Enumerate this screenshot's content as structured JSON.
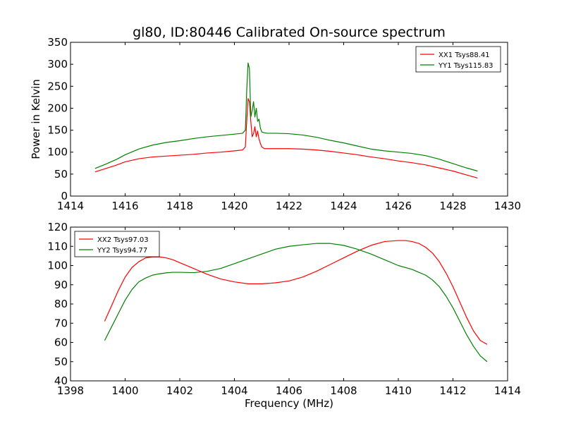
{
  "figure": {
    "title": "gl80, ID:80446 Calibrated On-source spectrum"
  },
  "chart_data": [
    {
      "type": "line",
      "title": "gl80, ID:80446 Calibrated On-source spectrum",
      "xlabel": "",
      "ylabel": "Power in Kelvin",
      "xlim": [
        1414,
        1430
      ],
      "ylim": [
        0,
        350
      ],
      "xticks": [
        1414,
        1416,
        1418,
        1420,
        1422,
        1424,
        1426,
        1428,
        1430
      ],
      "yticks": [
        0,
        50,
        100,
        150,
        200,
        250,
        300,
        350
      ],
      "grid": false,
      "legend": "top-right",
      "series": [
        {
          "name": "XX1 Tsys88.41",
          "color": "#ff0000",
          "x": [
            1414.9,
            1415.3,
            1415.7,
            1416.0,
            1416.5,
            1417.0,
            1417.5,
            1418.0,
            1418.5,
            1419.0,
            1419.5,
            1420.0,
            1420.3,
            1420.4,
            1420.45,
            1420.5,
            1420.55,
            1420.6,
            1420.65,
            1420.7,
            1420.75,
            1420.8,
            1420.85,
            1420.9,
            1420.95,
            1421.0,
            1421.1,
            1421.2,
            1421.5,
            1422.0,
            1422.5,
            1423.0,
            1423.5,
            1424.0,
            1424.5,
            1425.0,
            1425.5,
            1426.0,
            1426.5,
            1427.0,
            1427.5,
            1428.0,
            1428.5,
            1428.9
          ],
          "y": [
            55,
            63,
            71,
            78,
            85,
            89,
            91,
            93,
            95,
            98,
            100,
            103,
            105,
            112,
            170,
            222,
            215,
            170,
            135,
            142,
            158,
            135,
            148,
            130,
            120,
            112,
            108,
            108,
            108,
            108,
            107,
            105,
            102,
            98,
            94,
            89,
            85,
            80,
            76,
            71,
            64,
            57,
            48,
            41
          ]
        },
        {
          "name": "YY1 Tsys115.83",
          "color": "#008000",
          "x": [
            1414.9,
            1415.3,
            1415.7,
            1416.0,
            1416.5,
            1417.0,
            1417.5,
            1418.0,
            1418.5,
            1419.0,
            1419.5,
            1420.0,
            1420.3,
            1420.4,
            1420.45,
            1420.5,
            1420.55,
            1420.6,
            1420.65,
            1420.7,
            1420.75,
            1420.8,
            1420.85,
            1420.9,
            1420.95,
            1421.0,
            1421.1,
            1421.2,
            1421.5,
            1422.0,
            1422.5,
            1423.0,
            1423.5,
            1424.0,
            1424.5,
            1425.0,
            1425.5,
            1426.0,
            1426.5,
            1427.0,
            1427.5,
            1428.0,
            1428.5,
            1428.9
          ],
          "y": [
            63,
            73,
            84,
            94,
            107,
            116,
            122,
            126,
            131,
            135,
            138,
            141,
            143,
            150,
            240,
            303,
            290,
            180,
            195,
            215,
            180,
            200,
            170,
            175,
            155,
            146,
            144,
            143,
            143,
            142,
            139,
            134,
            127,
            121,
            114,
            107,
            103,
            100,
            97,
            92,
            84,
            74,
            64,
            57
          ]
        }
      ]
    },
    {
      "type": "line",
      "title": "",
      "xlabel": "Frequency (MHz)",
      "ylabel": "",
      "xlim": [
        1398,
        1414
      ],
      "ylim": [
        40,
        120
      ],
      "xticks": [
        1398,
        1400,
        1402,
        1404,
        1406,
        1408,
        1410,
        1412,
        1414
      ],
      "yticks": [
        40,
        50,
        60,
        70,
        80,
        90,
        100,
        110,
        120
      ],
      "grid": false,
      "legend": "top-left",
      "series": [
        {
          "name": "XX2 Tsys97.03",
          "color": "#ff0000",
          "x": [
            1399.25,
            1399.5,
            1399.75,
            1400.0,
            1400.25,
            1400.5,
            1400.75,
            1401.0,
            1401.25,
            1401.5,
            1401.75,
            1402.0,
            1402.5,
            1403.0,
            1403.5,
            1404.0,
            1404.5,
            1405.0,
            1405.5,
            1406.0,
            1406.5,
            1407.0,
            1407.5,
            1408.0,
            1408.5,
            1409.0,
            1409.5,
            1410.0,
            1410.25,
            1410.5,
            1410.75,
            1411.0,
            1411.25,
            1411.5,
            1411.75,
            1412.0,
            1412.25,
            1412.5,
            1412.75,
            1413.0,
            1413.25
          ],
          "y": [
            71,
            79,
            87,
            94,
            99,
            102,
            104,
            104.5,
            104.5,
            104,
            103,
            101.5,
            98.5,
            95.5,
            93,
            91.5,
            90.5,
            90.5,
            91,
            92,
            94,
            97,
            100.5,
            104,
            107.5,
            110.5,
            112.5,
            113,
            113,
            112.5,
            111.5,
            109.5,
            106.5,
            102,
            96,
            89,
            81,
            73,
            66,
            61,
            59
          ]
        },
        {
          "name": "YY2 Tsys94.77",
          "color": "#008000",
          "x": [
            1399.25,
            1399.5,
            1399.75,
            1400.0,
            1400.25,
            1400.5,
            1400.75,
            1401.0,
            1401.25,
            1401.5,
            1401.75,
            1402.0,
            1402.5,
            1403.0,
            1403.5,
            1404.0,
            1404.5,
            1405.0,
            1405.5,
            1406.0,
            1406.5,
            1407.0,
            1407.5,
            1408.0,
            1408.5,
            1409.0,
            1409.5,
            1410.0,
            1410.25,
            1410.5,
            1410.75,
            1411.0,
            1411.25,
            1411.5,
            1411.75,
            1412.0,
            1412.25,
            1412.5,
            1412.75,
            1413.0,
            1413.25
          ],
          "y": [
            61,
            68,
            75,
            82,
            87.5,
            91.5,
            93.5,
            95,
            95.7,
            96.2,
            96.5,
            96.5,
            96.3,
            97,
            98.5,
            101,
            103.5,
            106,
            108.5,
            110,
            110.8,
            111.5,
            111.5,
            110.5,
            108.5,
            106,
            103,
            100,
            99,
            98,
            96.5,
            95,
            92.5,
            89,
            84,
            78,
            71,
            64,
            58,
            53,
            50
          ]
        }
      ]
    }
  ]
}
